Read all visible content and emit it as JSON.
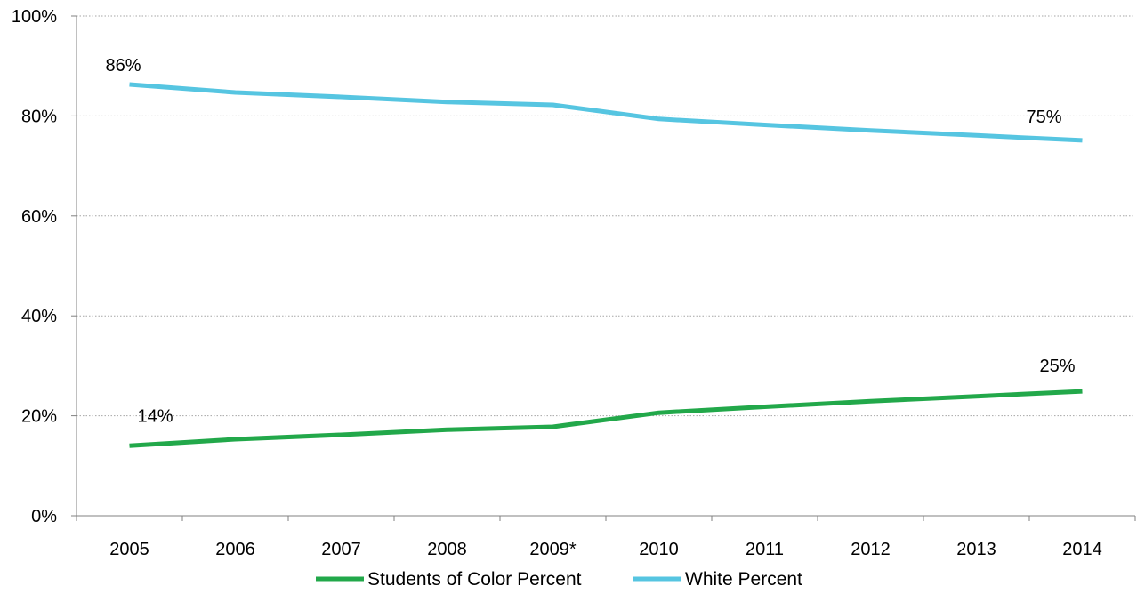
{
  "chart_data": {
    "type": "line",
    "categories": [
      "2005",
      "2006",
      "2007",
      "2008",
      "2009*",
      "2010",
      "2011",
      "2012",
      "2013",
      "2014"
    ],
    "series": [
      {
        "name": "Students of Color Percent",
        "color": "#22a84a",
        "values": [
          14,
          15.3,
          16.2,
          17.2,
          17.8,
          20.6,
          21.8,
          22.9,
          23.9,
          24.9
        ]
      },
      {
        "name": "White Percent",
        "color": "#56c5e1",
        "values": [
          86.3,
          84.7,
          83.8,
          82.8,
          82.2,
          79.4,
          78.2,
          77.1,
          76.1,
          75.1
        ]
      }
    ],
    "data_labels": [
      {
        "series": 0,
        "index": 0,
        "text": "14%"
      },
      {
        "series": 0,
        "index": 9,
        "text": "25%"
      },
      {
        "series": 1,
        "index": 0,
        "text": "86%"
      },
      {
        "series": 1,
        "index": 9,
        "text": "75%"
      }
    ],
    "y_ticks": [
      "0%",
      "20%",
      "40%",
      "60%",
      "80%",
      "100%"
    ],
    "ylim": [
      0,
      100
    ],
    "grid": "horizontal-dotted",
    "legend_position": "bottom",
    "title": "",
    "xlabel": "",
    "ylabel": ""
  }
}
